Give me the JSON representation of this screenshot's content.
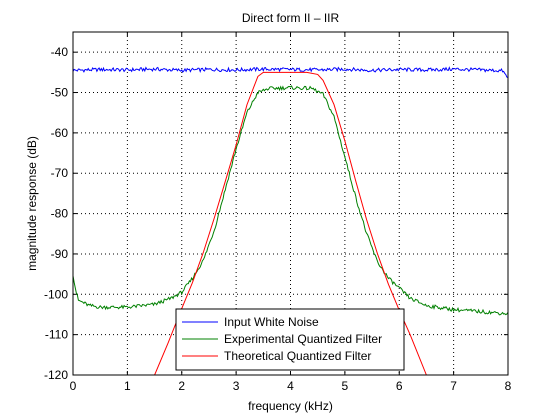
{
  "chart_data": {
    "type": "line",
    "title": "Direct form II – IIR",
    "xlabel": "frequency (kHz)",
    "ylabel": "magnitude response (dB)",
    "xlim": [
      0,
      8
    ],
    "ylim": [
      -120,
      -35
    ],
    "xticks": [
      0,
      1,
      2,
      3,
      4,
      5,
      6,
      7,
      8
    ],
    "yticks": [
      -40,
      -50,
      -60,
      -70,
      -80,
      -90,
      -100,
      -110,
      -120
    ],
    "xtick_labels": [
      "0",
      "1",
      "2",
      "3",
      "4",
      "5",
      "6",
      "7",
      "8"
    ],
    "ytick_labels": [
      "-40",
      "-50",
      "-60",
      "-70",
      "-80",
      "-90",
      "-100",
      "-110",
      "-120"
    ],
    "grid": true,
    "legend_position": "bottom-center",
    "series": [
      {
        "name": "Input White Noise",
        "color": "#0000ff",
        "x": [
          0,
          0.5,
          1,
          1.5,
          2,
          2.5,
          3,
          3.5,
          4,
          4.5,
          5,
          5.5,
          6,
          6.5,
          7,
          7.5,
          7.9,
          8
        ],
        "y": [
          -44.5,
          -44.3,
          -44.4,
          -44.2,
          -44.5,
          -44.3,
          -44.4,
          -44.2,
          -44.3,
          -44.4,
          -44.2,
          -44.5,
          -44.3,
          -44.4,
          -44.2,
          -44.4,
          -44.6,
          -46.5
        ]
      },
      {
        "name": "Experimental Quantized Filter",
        "color": "#008000",
        "x": [
          0,
          0.05,
          0.1,
          0.3,
          0.5,
          1,
          1.5,
          1.8,
          2,
          2.2,
          2.4,
          2.6,
          2.8,
          3,
          3.2,
          3.4,
          3.6,
          4,
          4.4,
          4.6,
          4.8,
          5,
          5.2,
          5.4,
          5.6,
          5.8,
          6,
          6.2,
          6.5,
          7,
          7.5,
          8
        ],
        "y": [
          -95,
          -99,
          -101.5,
          -102.8,
          -103.2,
          -103.2,
          -102.5,
          -101,
          -99.5,
          -96,
          -91.5,
          -84,
          -74,
          -64,
          -55,
          -50,
          -49,
          -48.8,
          -49,
          -50.5,
          -56,
          -66,
          -76,
          -85,
          -92,
          -96,
          -98.5,
          -101,
          -102.8,
          -103.8,
          -104.3,
          -104.8
        ]
      },
      {
        "name": "Theoretical Quantized Filter",
        "color": "#ff0000",
        "x": [
          1.5,
          1.75,
          2,
          2.2,
          2.4,
          2.6,
          2.8,
          3,
          3.2,
          3.4,
          3.5,
          3.7,
          4,
          4.3,
          4.5,
          4.6,
          4.8,
          5,
          5.2,
          5.4,
          5.6,
          5.8,
          6,
          6.2,
          6.5
        ],
        "y": [
          -120,
          -112,
          -103.5,
          -97,
          -89.5,
          -81,
          -72,
          -63,
          -53,
          -46,
          -45,
          -45,
          -45,
          -45,
          -45.5,
          -47,
          -53,
          -62,
          -72,
          -81.5,
          -90,
          -97.5,
          -104,
          -110,
          -120
        ]
      }
    ]
  }
}
